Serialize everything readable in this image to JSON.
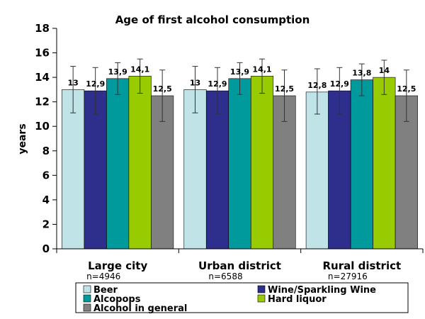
{
  "chart_data": {
    "type": "bar",
    "title": "Age of first alcohol consumption",
    "ylabel": "years",
    "xlabel": "",
    "ylim": [
      0,
      18
    ],
    "ytick_step": 2,
    "grid": false,
    "legend_position": "bottom",
    "categories": [
      "Large city",
      "Urban district",
      "Rural district"
    ],
    "category_notes": [
      "n=4946",
      "n=6588",
      "n=27916"
    ],
    "series": [
      {
        "name": "Beer",
        "color": "#bfe3e6",
        "values": [
          13,
          13,
          12.8
        ],
        "labels": [
          "13",
          "13",
          "12,8"
        ],
        "error": [
          [
            11.1,
            14.9
          ],
          [
            11.1,
            14.9
          ],
          [
            11.0,
            14.7
          ]
        ]
      },
      {
        "name": "Wine/Sparkling Wine",
        "color": "#2e2e8c",
        "values": [
          12.9,
          12.9,
          12.9
        ],
        "labels": [
          "12,9",
          "12,9",
          "12,9"
        ],
        "error": [
          [
            11.0,
            14.8
          ],
          [
            11.0,
            14.8
          ],
          [
            11.0,
            14.8
          ]
        ]
      },
      {
        "name": "Alcopops",
        "color": "#00999c",
        "values": [
          13.9,
          13.9,
          13.8
        ],
        "labels": [
          "13,9",
          "13,9",
          "13,8"
        ],
        "error": [
          [
            12.6,
            15.2
          ],
          [
            12.6,
            15.2
          ],
          [
            12.5,
            15.1
          ]
        ]
      },
      {
        "name": "Hard liquor",
        "color": "#99cc00",
        "values": [
          14.1,
          14.1,
          14
        ],
        "labels": [
          "14,1",
          "14,1",
          "14"
        ],
        "error": [
          [
            12.7,
            15.5
          ],
          [
            12.7,
            15.5
          ],
          [
            12.6,
            15.4
          ]
        ]
      },
      {
        "name": "Alcohol in general",
        "color": "#808080",
        "values": [
          12.5,
          12.5,
          12.5
        ],
        "labels": [
          "12,5",
          "12,5",
          "12,5"
        ],
        "error": [
          [
            10.4,
            14.6
          ],
          [
            10.4,
            14.6
          ],
          [
            10.4,
            14.6
          ]
        ]
      }
    ]
  }
}
